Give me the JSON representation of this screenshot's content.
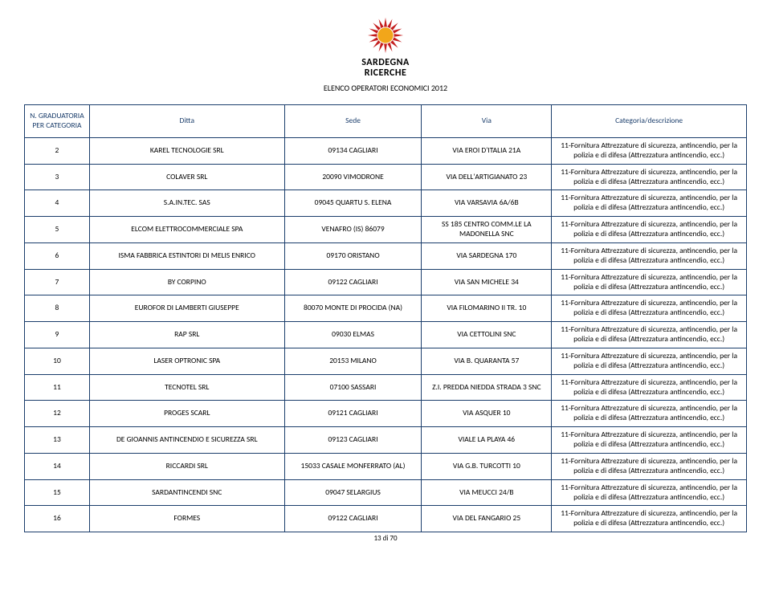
{
  "logo": {
    "line1": "SARDEGNA",
    "line2": "RICERCHE",
    "sunOuter": "#c41e1e",
    "sunInner": "#f2a61a"
  },
  "titleLine": "ELENCO OPERATORI ECONOMICI 2012",
  "columns": {
    "num": "N. GRADUATORIA PER CATEGORIA",
    "ditta": "Ditta",
    "sede": "Sede",
    "via": "Via",
    "cat": "Categoria/descrizione"
  },
  "categoryText": "11-Fornitura Attrezzature di sicurezza, antincendio, per la polizia e di difesa (Attrezzatura antincendio, ecc.)",
  "rows": [
    {
      "n": "2",
      "ditta": "KAREL TECNOLOGIE SRL",
      "sede": "09134 CAGLIARI",
      "via": "VIA EROI D'ITALIA 21A"
    },
    {
      "n": "3",
      "ditta": "COLAVER SRL",
      "sede": "20090 VIMODRONE",
      "via": "VIA DELL'ARTIGIANATO 23"
    },
    {
      "n": "4",
      "ditta": "S.A.IN.TEC. SAS",
      "sede": "09045 QUARTU S. ELENA",
      "via": "VIA VARSAVIA 6A/6B"
    },
    {
      "n": "5",
      "ditta": "ELCOM ELETTROCOMMERCIALE SPA",
      "sede": "VENAFRO (IS) 86079",
      "via": "SS 185 CENTRO COMM.LE LA MADONELLA SNC"
    },
    {
      "n": "6",
      "ditta": "ISMA FABBRICA ESTINTORI DI MELIS ENRICO",
      "sede": "09170 ORISTANO",
      "via": "VIA SARDEGNA 170"
    },
    {
      "n": "7",
      "ditta": "BY CORPINO",
      "sede": "09122 CAGLIARI",
      "via": "VIA SAN MICHELE 34"
    },
    {
      "n": "8",
      "ditta": "EUROFOR DI LAMBERTI GIUSEPPE",
      "sede": "80070 MONTE DI PROCIDA (NA)",
      "via": "VIA FILOMARINO II TR. 10"
    },
    {
      "n": "9",
      "ditta": "RAP SRL",
      "sede": "09030 ELMAS",
      "via": "VIA CETTOLINI SNC"
    },
    {
      "n": "10",
      "ditta": "LASER OPTRONIC SPA",
      "sede": "20153 MILANO",
      "via": "VIA B. QUARANTA 57"
    },
    {
      "n": "11",
      "ditta": "TECNOTEL SRL",
      "sede": "07100 SASSARI",
      "via": "Z.I. PREDDA NIEDDA STRADA 3 SNC"
    },
    {
      "n": "12",
      "ditta": "PROGES SCARL",
      "sede": "09121 CAGLIARI",
      "via": "VIA ASQUER 10"
    },
    {
      "n": "13",
      "ditta": "DE GIOANNIS ANTINCENDIO E SICUREZZA SRL",
      "sede": "09123 CAGLIARI",
      "via": "VIALE LA PLAYA 46"
    },
    {
      "n": "14",
      "ditta": "RICCARDI SRL",
      "sede": "15033 CASALE MONFERRATO (AL)",
      "via": "VIA G.B. TURCOTTI 10"
    },
    {
      "n": "15",
      "ditta": "SARDANTINCENDI SNC",
      "sede": "09047 SELARGIUS",
      "via": "VIA MEUCCI 24/B"
    },
    {
      "n": "16",
      "ditta": "FORMES",
      "sede": "09122 CAGLIARI",
      "via": "VIA DEL FANGARIO 25"
    }
  ],
  "pageFooter": "13 di 70",
  "style": {
    "borderColor": "#1a3d6b",
    "headerTextColor": "#1a3d6b",
    "background": "#ffffff"
  }
}
